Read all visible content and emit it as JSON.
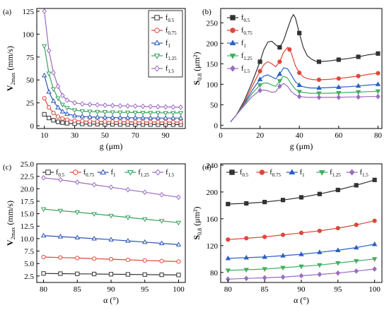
{
  "figure": {
    "background": "#ffffff",
    "series_styles": [
      {
        "color": "#333333",
        "marker": "square",
        "fill": "hollow"
      },
      {
        "color": "#d94a3a",
        "marker": "circle",
        "fill": "hollow"
      },
      {
        "color": "#2a55b8",
        "marker": "triangle",
        "fill": "hollow"
      },
      {
        "color": "#3aa060",
        "marker": "triangle-down",
        "fill": "hollow"
      },
      {
        "color": "#9b6bc0",
        "marker": "diamond",
        "fill": "hollow"
      }
    ],
    "series_styles_filled": [
      {
        "color": "#333333",
        "marker": "square",
        "fill": "solid"
      },
      {
        "color": "#e0463a",
        "marker": "circle",
        "fill": "solid"
      },
      {
        "color": "#2a5fc8",
        "marker": "triangle",
        "fill": "solid"
      },
      {
        "color": "#40b060",
        "marker": "triangle-down",
        "fill": "solid"
      },
      {
        "color": "#9b6bc0",
        "marker": "diamond",
        "fill": "solid"
      }
    ]
  },
  "chart_data": [
    {
      "panel": "(a)",
      "type": "line",
      "xlabel": "g (μm)",
      "ylabel": {
        "main": "V",
        "sub": "2max",
        "unit": " (mm/s)"
      },
      "xlim": [
        5,
        103
      ],
      "ylim": [
        -3,
        128
      ],
      "xticks": [
        10,
        30,
        50,
        70,
        90
      ],
      "yticks": [
        0,
        25,
        50,
        75,
        100,
        125
      ],
      "legend": "top-right",
      "legend_style": "hollow",
      "x": [
        10,
        13,
        16,
        19,
        22,
        25,
        30,
        35,
        40,
        45,
        50,
        55,
        60,
        65,
        70,
        75,
        80,
        85,
        90,
        95,
        100
      ],
      "series": [
        {
          "name": "f",
          "sub": "0.5",
          "values": [
            12.5,
            8.5,
            6.0,
            4.3,
            3.4,
            2.7,
            2.2,
            2.0,
            1.8,
            1.7,
            1.6,
            1.6,
            1.5,
            1.5,
            1.4,
            1.4,
            1.4,
            1.3,
            1.3,
            1.3,
            1.3
          ]
        },
        {
          "name": "f",
          "sub": "0.75",
          "values": [
            30,
            20,
            14,
            10,
            8,
            6.6,
            5.6,
            5.2,
            4.9,
            4.7,
            4.6,
            4.5,
            4.4,
            4.3,
            4.2,
            4.2,
            4.1,
            4.1,
            4.0,
            4.0,
            4.0
          ]
        },
        {
          "name": "f",
          "sub": "1",
          "values": [
            55,
            37,
            27,
            20,
            15.5,
            13,
            11,
            10.2,
            9.7,
            9.4,
            9.2,
            9.0,
            8.9,
            8.8,
            8.7,
            8.6,
            8.5,
            8.5,
            8.4,
            8.4,
            8.4
          ]
        },
        {
          "name": "f",
          "sub": "1.25",
          "values": [
            87,
            57,
            40,
            30,
            23,
            19.5,
            17,
            16,
            15.5,
            15.2,
            15,
            14.8,
            14.6,
            14.5,
            14.4,
            14.3,
            14.2,
            14.1,
            14.0,
            14.0,
            14.0
          ]
        },
        {
          "name": "f",
          "sub": "1.5",
          "values": [
            125,
            82,
            58,
            43,
            33,
            28,
            25,
            23.8,
            23.2,
            22.8,
            22.4,
            22.1,
            21.8,
            21.6,
            21.4,
            21.2,
            21.0,
            20.8,
            20.6,
            20.4,
            20.2
          ]
        }
      ]
    },
    {
      "panel": "(b)",
      "type": "line",
      "xlabel": "g (μm)",
      "ylabel": {
        "main": "S",
        "sub": "0.8",
        "unit": " (μm²)"
      },
      "xlim": [
        0,
        82
      ],
      "ylim": [
        -8,
        285
      ],
      "xticks": [
        0,
        20,
        40,
        60,
        80
      ],
      "yticks": [
        0,
        50,
        100,
        150,
        200,
        250
      ],
      "legend": "top-left",
      "legend_style": "filled",
      "marker_x": [
        20,
        25,
        30,
        35,
        40,
        50,
        60,
        70,
        80
      ],
      "series": [
        {
          "name": "f",
          "sub": "0.5",
          "x": [
            5,
            8,
            12,
            16,
            20,
            22,
            24,
            26,
            28,
            30,
            32,
            34,
            36,
            37,
            38,
            40,
            42,
            44,
            46,
            48,
            50,
            55,
            60,
            65,
            70,
            75,
            80
          ],
          "values": [
            8,
            25,
            60,
            105,
            155,
            185,
            203,
            205,
            196,
            190,
            207,
            235,
            262,
            270,
            262,
            225,
            190,
            170,
            162,
            157,
            155,
            157,
            160,
            163,
            167,
            172,
            175
          ]
        },
        {
          "name": "f",
          "sub": "0.75",
          "x": [
            5,
            8,
            12,
            16,
            20,
            22,
            24,
            26,
            28,
            30,
            32,
            34,
            35,
            36,
            38,
            40,
            42,
            44,
            46,
            48,
            50,
            55,
            60,
            65,
            70,
            75,
            80
          ],
          "values": [
            8,
            25,
            55,
            95,
            132,
            148,
            155,
            150,
            143,
            155,
            178,
            190,
            185,
            175,
            145,
            128,
            118,
            114,
            112,
            111,
            111,
            112,
            114,
            117,
            120,
            124,
            127
          ]
        },
        {
          "name": "f",
          "sub": "1",
          "x": [
            5,
            8,
            12,
            16,
            20,
            22,
            24,
            26,
            28,
            30,
            32,
            34,
            36,
            38,
            40,
            42,
            44,
            46,
            48,
            50,
            55,
            60,
            65,
            70,
            75,
            80
          ],
          "values": [
            8,
            25,
            52,
            85,
            112,
            120,
            123,
            118,
            113,
            125,
            140,
            138,
            122,
            106,
            98,
            94,
            92,
            91,
            91,
            91,
            92,
            93,
            94,
            96,
            98,
            100
          ]
        },
        {
          "name": "f",
          "sub": "1.25",
          "x": [
            5,
            8,
            12,
            16,
            20,
            22,
            24,
            26,
            28,
            30,
            32,
            34,
            36,
            38,
            40,
            42,
            44,
            46,
            48,
            50,
            55,
            60,
            65,
            70,
            75,
            80
          ],
          "values": [
            8,
            25,
            50,
            78,
            98,
            103,
            103,
            98,
            95,
            108,
            120,
            115,
            100,
            88,
            82,
            80,
            79,
            78,
            78,
            78,
            78,
            79,
            80,
            81,
            82,
            83
          ]
        },
        {
          "name": "f",
          "sub": "1.5",
          "x": [
            5,
            8,
            12,
            16,
            20,
            22,
            24,
            26,
            28,
            30,
            32,
            34,
            36,
            38,
            40,
            42,
            44,
            46,
            48,
            50,
            55,
            60,
            65,
            70,
            75,
            80
          ],
          "values": [
            8,
            25,
            48,
            70,
            85,
            86,
            84,
            80,
            82,
            95,
            102,
            95,
            82,
            74,
            70,
            69,
            68,
            68,
            68,
            68,
            68,
            68,
            69,
            69,
            70,
            70
          ]
        }
      ]
    },
    {
      "panel": "(c)",
      "type": "line",
      "xlabel": "α (°)",
      "ylabel": {
        "main": "V",
        "sub": "2max",
        "unit": " (mm/s)"
      },
      "xlim": [
        79,
        101
      ],
      "ylim": [
        1.2,
        25
      ],
      "xticks": [
        80,
        85,
        90,
        95,
        100
      ],
      "yticks": [
        2.5,
        5.0,
        7.5,
        10.0,
        12.5,
        15.0,
        17.5,
        20.0,
        22.5,
        25.0
      ],
      "legend": "top-row",
      "legend_style": "hollow",
      "x": [
        80,
        82.5,
        85,
        87.5,
        90,
        92.5,
        95,
        97.5,
        100
      ],
      "series": [
        {
          "name": "f",
          "sub": "0.5",
          "values": [
            3.0,
            2.97,
            2.93,
            2.9,
            2.86,
            2.82,
            2.78,
            2.74,
            2.7
          ]
        },
        {
          "name": "f",
          "sub": "0.75",
          "values": [
            6.3,
            6.2,
            6.1,
            5.98,
            5.86,
            5.74,
            5.62,
            5.5,
            5.4
          ]
        },
        {
          "name": "f",
          "sub": "1",
          "values": [
            10.6,
            10.4,
            10.2,
            10.0,
            9.8,
            9.55,
            9.3,
            9.05,
            8.8
          ]
        },
        {
          "name": "f",
          "sub": "1.25",
          "values": [
            15.9,
            15.6,
            15.3,
            14.95,
            14.6,
            14.25,
            13.9,
            13.55,
            13.2
          ]
        },
        {
          "name": "f",
          "sub": "1.5",
          "values": [
            22.2,
            21.8,
            21.3,
            20.8,
            20.3,
            19.8,
            19.3,
            18.8,
            18.3
          ]
        }
      ]
    },
    {
      "panel": "(d)",
      "type": "line",
      "xlabel": "α (°)",
      "ylabel": {
        "main": "S",
        "sub": "0.8",
        "unit": " (μm²)"
      },
      "xlim": [
        79,
        101
      ],
      "ylim": [
        65,
        242
      ],
      "xticks": [
        80,
        85,
        90,
        95,
        100
      ],
      "yticks": [
        80,
        120,
        160,
        200,
        240
      ],
      "legend": "top-row",
      "legend_style": "filled",
      "x": [
        80,
        82.5,
        85,
        87.5,
        90,
        92.5,
        95,
        97.5,
        100
      ],
      "series": [
        {
          "name": "f",
          "sub": "0.5",
          "values": [
            182,
            183,
            185,
            188,
            192,
            197,
            203,
            210,
            218
          ]
        },
        {
          "name": "f",
          "sub": "0.75",
          "values": [
            129,
            131,
            133,
            136,
            139,
            142,
            146,
            151,
            157
          ]
        },
        {
          "name": "f",
          "sub": "1",
          "values": [
            101,
            102,
            103,
            105,
            107,
            110,
            113,
            117,
            122
          ]
        },
        {
          "name": "f",
          "sub": "1.25",
          "values": [
            83,
            84,
            85,
            87,
            89,
            91,
            94,
            97,
            100
          ]
        },
        {
          "name": "f",
          "sub": "1.5",
          "values": [
            70,
            71,
            72,
            73,
            75,
            77,
            79,
            82,
            85
          ]
        }
      ]
    }
  ]
}
